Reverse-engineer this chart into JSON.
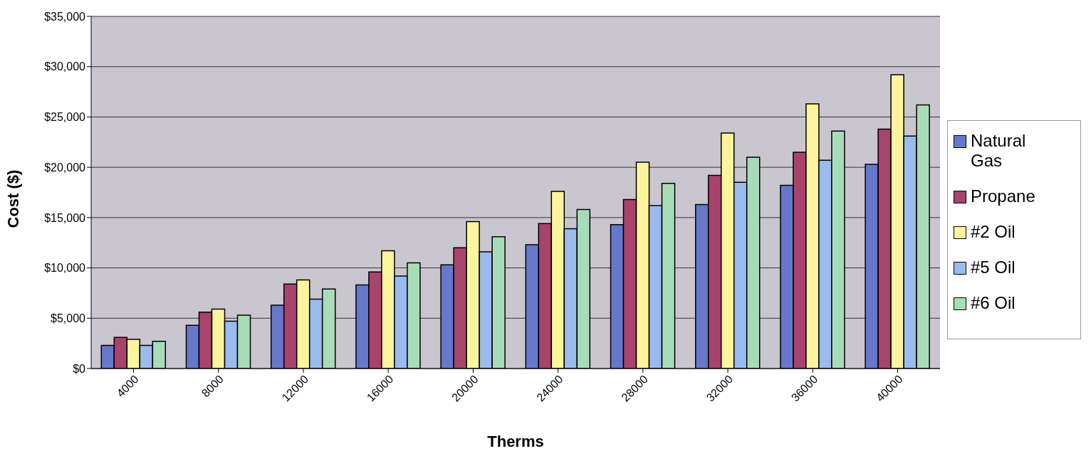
{
  "chart_data": {
    "type": "bar",
    "xlabel": "Therms",
    "ylabel": "Cost ($)",
    "categories": [
      "4000",
      "8000",
      "12000",
      "16000",
      "20000",
      "24000",
      "28000",
      "32000",
      "36000",
      "40000"
    ],
    "series": [
      {
        "name": "Natural Gas",
        "color": "#6677cc",
        "values": [
          2300,
          4300,
          6300,
          8300,
          10300,
          12300,
          14300,
          16300,
          18200,
          20300
        ]
      },
      {
        "name": "Propane",
        "color": "#a8436b",
        "values": [
          3100,
          5600,
          8400,
          9600,
          12000,
          14400,
          16800,
          19200,
          21500,
          23800
        ]
      },
      {
        "name": "#2 Oil",
        "color": "#fbf49c",
        "values": [
          2900,
          5900,
          8800,
          11700,
          14600,
          17600,
          20500,
          23400,
          26300,
          29200
        ]
      },
      {
        "name": "#5 Oil",
        "color": "#99bbee",
        "values": [
          2300,
          4700,
          6900,
          9200,
          11600,
          13900,
          16200,
          18500,
          20700,
          23100
        ]
      },
      {
        "name": "#6 Oil",
        "color": "#a8dcb8",
        "values": [
          2700,
          5300,
          7900,
          10500,
          13100,
          15800,
          18400,
          21000,
          23600,
          26200
        ]
      }
    ],
    "ylim": [
      0,
      35000
    ],
    "yticks": [
      {
        "value": 0,
        "label": "$0"
      },
      {
        "value": 5000,
        "label": "$5,000"
      },
      {
        "value": 10000,
        "label": "$10,000"
      },
      {
        "value": 15000,
        "label": "$15,000"
      },
      {
        "value": 20000,
        "label": "$20,000"
      },
      {
        "value": 25000,
        "label": "$25,000"
      },
      {
        "value": 30000,
        "label": "$30,000"
      },
      {
        "value": 35000,
        "label": "$35,000"
      }
    ],
    "grid": "y",
    "legend": "right"
  }
}
